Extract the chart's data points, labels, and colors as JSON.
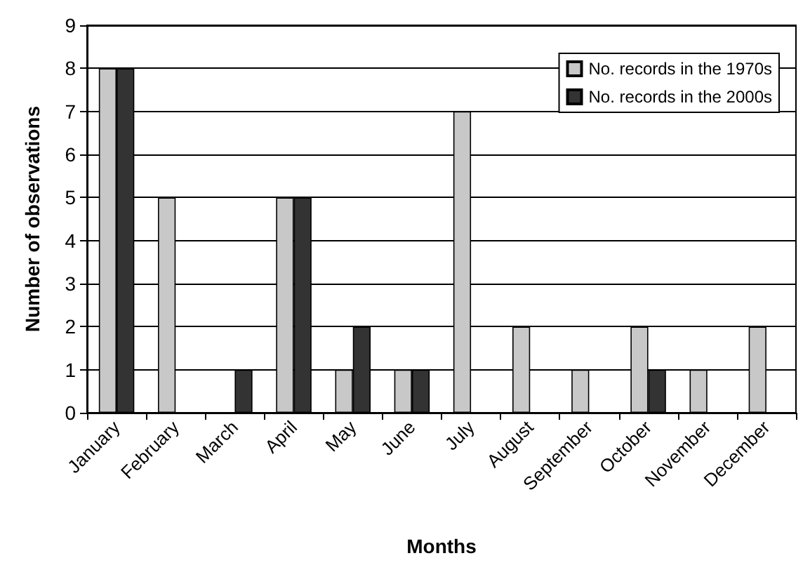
{
  "chart_data": {
    "type": "bar",
    "xlabel": "Months",
    "ylabel": "Number of observations",
    "categories": [
      "January",
      "February",
      "March",
      "April",
      "May",
      "June",
      "July",
      "August",
      "September",
      "October",
      "November",
      "December"
    ],
    "series": [
      {
        "name": "No. records in the 1970s",
        "color": "#c8c8c8",
        "values": [
          8,
          5,
          0,
          5,
          1,
          1,
          7,
          2,
          1,
          2,
          1,
          2
        ]
      },
      {
        "name": "No. records in the 2000s",
        "color": "#333333",
        "values": [
          8,
          0,
          1,
          5,
          2,
          1,
          0,
          0,
          0,
          1,
          0,
          0
        ]
      }
    ],
    "ylim": [
      0,
      9
    ],
    "yticks": [
      0,
      1,
      2,
      3,
      4,
      5,
      6,
      7,
      8,
      9
    ],
    "grid": "y",
    "legend": "top right"
  }
}
